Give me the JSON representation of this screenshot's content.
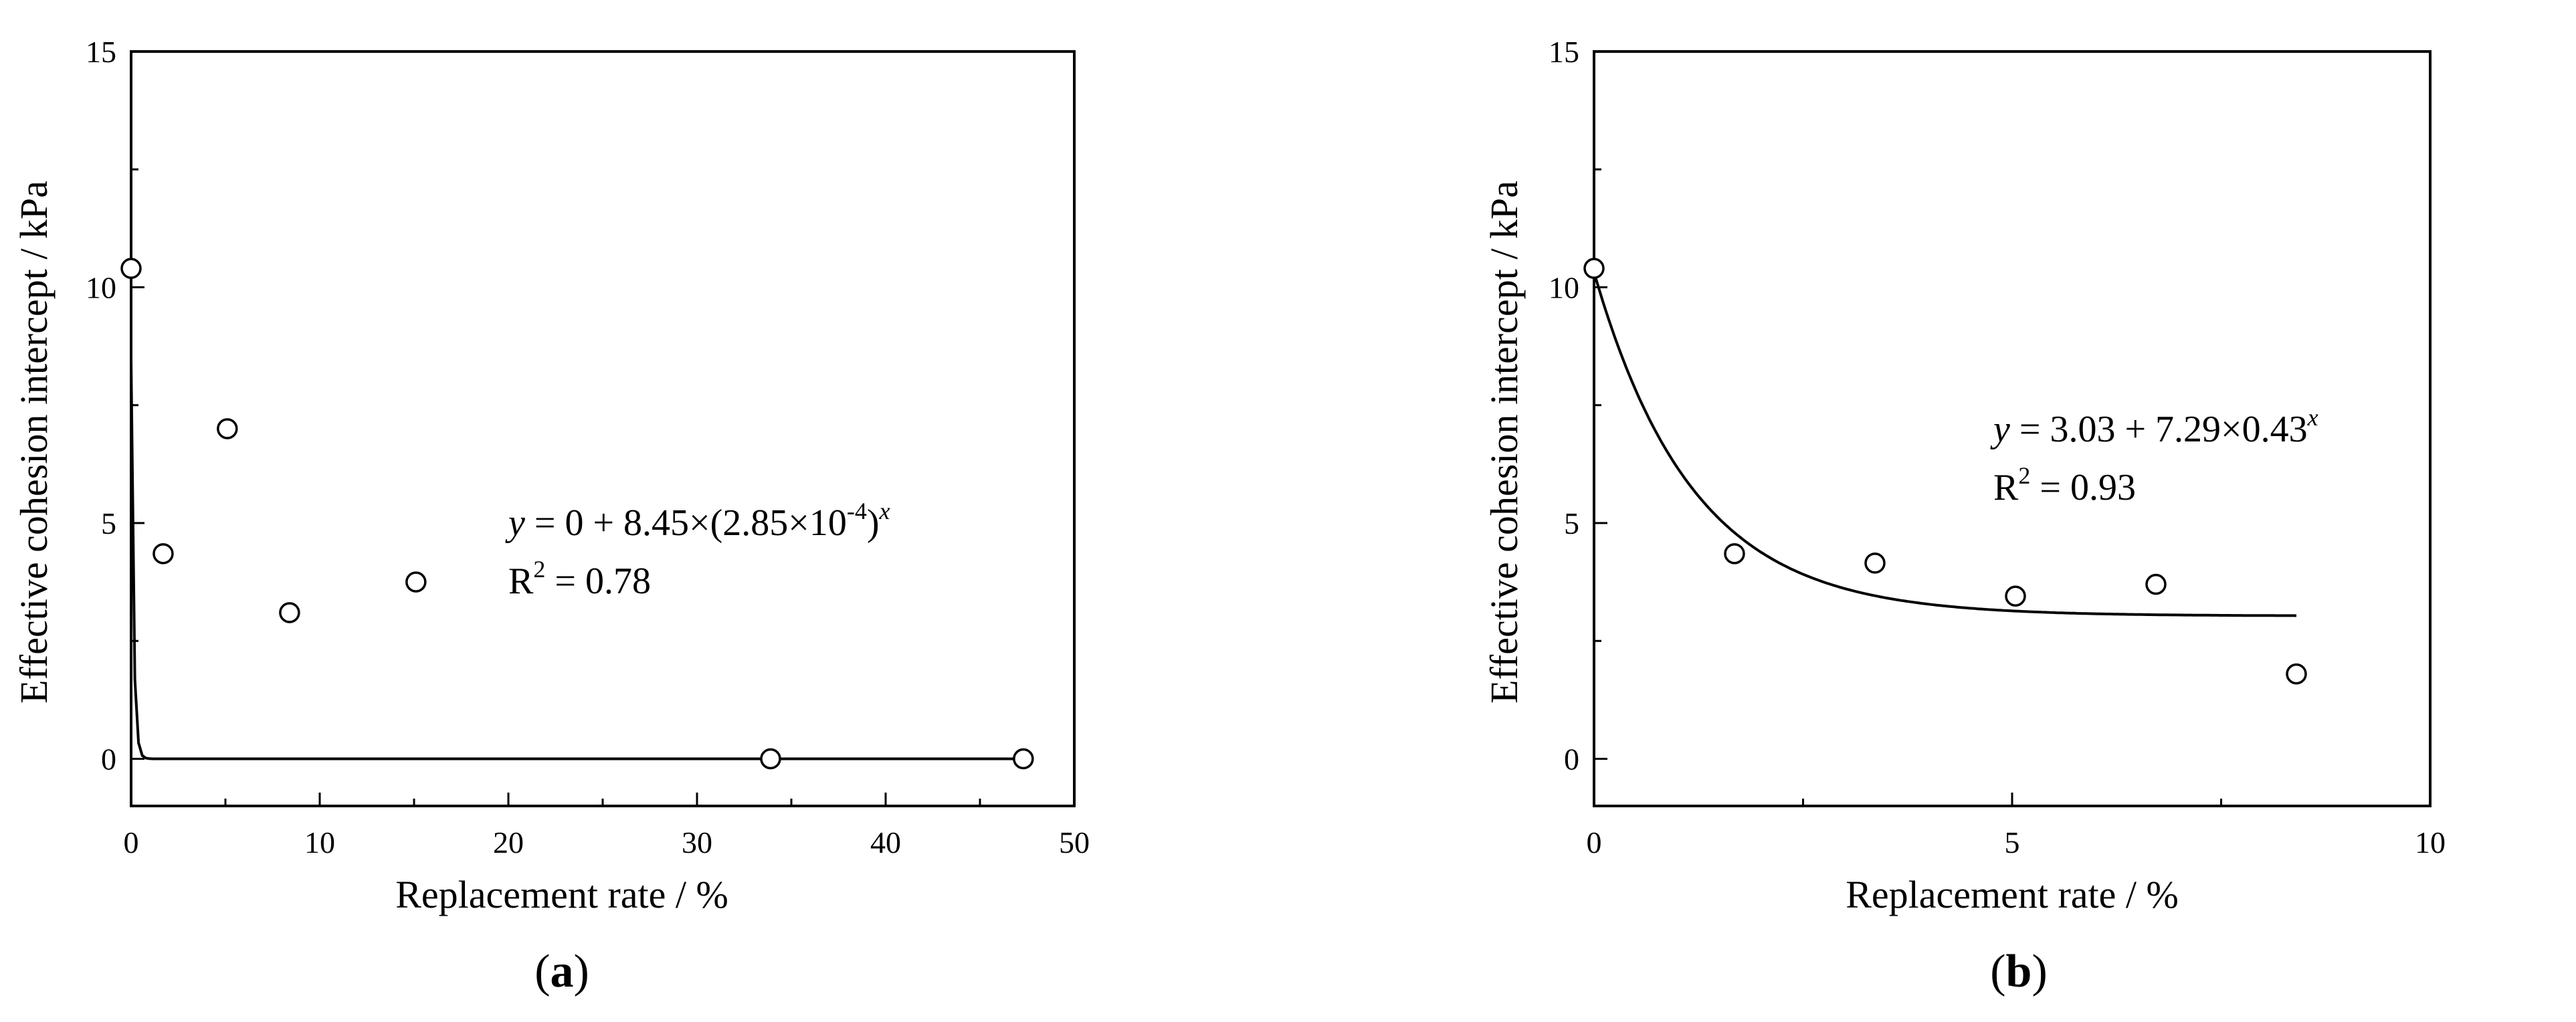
{
  "chart_data": [
    {
      "type": "scatter",
      "panel_label": "(a)",
      "xlabel": "Replacement rate  / %",
      "ylabel": "Effective cohesion intercept  / kPa",
      "xlim": [
        0,
        50
      ],
      "ylim": [
        -1,
        15
      ],
      "x_ticks": [
        0,
        10,
        20,
        30,
        40,
        50
      ],
      "y_ticks": [
        0,
        5,
        10,
        15
      ],
      "grid": false,
      "points": [
        {
          "x": 0,
          "y": 10.4
        },
        {
          "x": 1.7,
          "y": 4.35
        },
        {
          "x": 5.1,
          "y": 7.0
        },
        {
          "x": 8.4,
          "y": 3.1
        },
        {
          "x": 15.1,
          "y": 3.75
        },
        {
          "x": 33.9,
          "y": 0.0
        },
        {
          "x": 47.3,
          "y": 0.0
        }
      ],
      "fit": {
        "a": 0,
        "b": 8.45,
        "c": 0.000285,
        "x_range": [
          0,
          47.3
        ]
      },
      "equation": {
        "y": "y",
        "rhs": " = 0 + 8.45×(2.85×10",
        "exp_inner": "-4",
        "close": ")",
        "exp_outer": "x"
      },
      "r2": {
        "base": "R",
        "sup": "2",
        "rest": " = 0.78"
      }
    },
    {
      "type": "scatter",
      "panel_label": "(b)",
      "xlabel": "Replacement rate / %",
      "ylabel": "Effective cohesion intercept  / kPa",
      "xlim": [
        0,
        10
      ],
      "ylim": [
        -1,
        15
      ],
      "x_ticks": [
        0,
        5,
        10
      ],
      "y_ticks": [
        0,
        5,
        10,
        15
      ],
      "grid": false,
      "points": [
        {
          "x": 0,
          "y": 10.4
        },
        {
          "x": 1.68,
          "y": 4.35
        },
        {
          "x": 3.36,
          "y": 4.15
        },
        {
          "x": 5.04,
          "y": 3.45
        },
        {
          "x": 6.72,
          "y": 3.7
        },
        {
          "x": 8.4,
          "y": 1.8
        }
      ],
      "fit": {
        "a": 3.03,
        "b": 7.29,
        "c": 0.43,
        "x_range": [
          0,
          8.4
        ]
      },
      "equation": {
        "y": "y",
        "rhs": " = 3.03 + 7.29×0.43",
        "exp_outer": "x"
      },
      "r2": {
        "base": "R",
        "sup": "2",
        "rest": " = 0.93"
      }
    }
  ]
}
